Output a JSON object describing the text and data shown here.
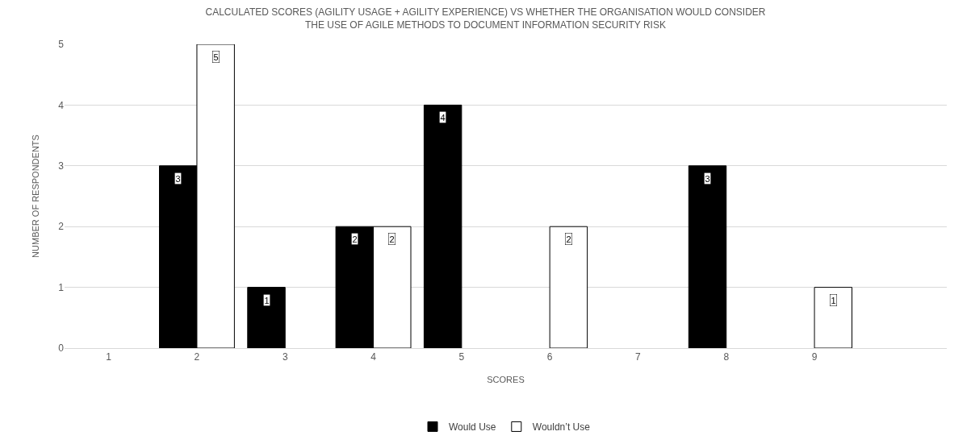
{
  "chart_data": {
    "type": "bar",
    "title": "CALCULATED SCORES (AGILITY USAGE + AGILITY EXPERIENCE) VS WHETHER THE ORGANISATION WOULD CONSIDER\nTHE USE OF AGILE METHODS TO DOCUMENT INFORMATION SECURITY RISK",
    "xlabel": "SCORES",
    "ylabel": "NUMBER OF RESPONDENTS",
    "categories": [
      "1",
      "2",
      "3",
      "4",
      "5",
      "6",
      "7",
      "8",
      "9",
      null
    ],
    "series": [
      {
        "name": "Would Use",
        "color": "#000000",
        "values": [
          null,
          3,
          1,
          2,
          4,
          null,
          null,
          3,
          null,
          null
        ]
      },
      {
        "name": "Wouldn’t Use",
        "color": "#ffffff",
        "values": [
          null,
          5,
          null,
          2,
          null,
          2,
          null,
          null,
          1,
          null
        ]
      }
    ],
    "ylim": [
      0,
      5
    ],
    "yticks": [
      0,
      1,
      2,
      3,
      4,
      5
    ],
    "grid": "y",
    "legend": "bottom",
    "data_labels": true
  }
}
